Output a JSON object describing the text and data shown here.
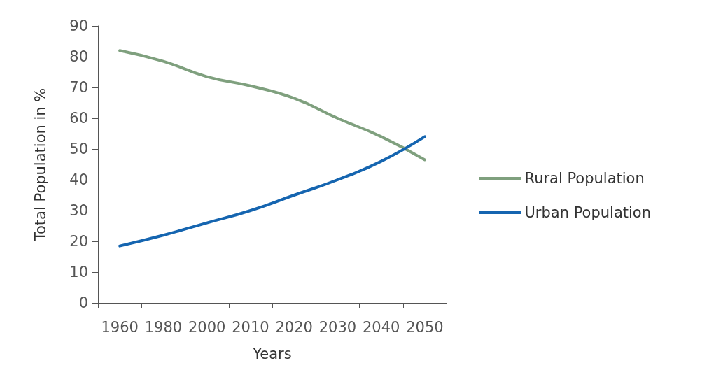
{
  "chart_data": {
    "type": "line",
    "xlabel": "Years",
    "ylabel": "Total Population in %",
    "categories": [
      "1960",
      "1980",
      "2000",
      "2010",
      "2020",
      "2030",
      "2040",
      "2050"
    ],
    "series": [
      {
        "name": "Rural Population",
        "color": "#7fa07e",
        "values": [
          82,
          78.5,
          73.5,
          70.5,
          66.5,
          60,
          54,
          46.5
        ]
      },
      {
        "name": "Urban Population",
        "color": "#1565b0",
        "values": [
          18.5,
          22,
          26,
          30,
          35,
          40,
          46,
          54
        ]
      }
    ],
    "ylim": [
      0,
      90
    ],
    "yticks": [
      0,
      10,
      20,
      30,
      40,
      50,
      60,
      70,
      80,
      90
    ],
    "grid": false,
    "legend": "right",
    "marker": "none",
    "line_style": "solid"
  }
}
